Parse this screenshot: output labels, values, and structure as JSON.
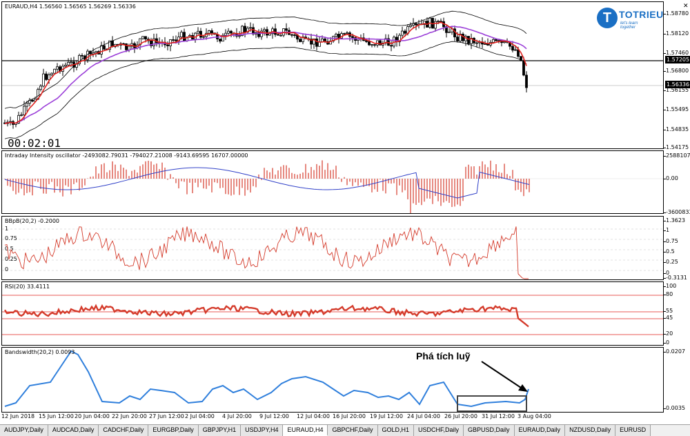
{
  "main_chart": {
    "label": "EURAUD,H4  1.56560 1.56565 1.56269 1.56336",
    "timer": "00:02:01",
    "ticks": [
      "1.58780",
      "1.58120",
      "1.57460",
      "1.56800",
      "1.56155",
      "1.55495",
      "1.54835",
      "1.54175"
    ],
    "price_line_tag": "1.57205",
    "current_price_tag": "1.56336"
  },
  "logo": {
    "brand": "TOTRIEU",
    "slogan": "let's learn together",
    "letter": "T"
  },
  "intraday": {
    "label": "Intraday Intensity oscillator -2493082.79031 -794027.21008 -9143.69595 16707.00000",
    "ticks": [
      "2588107.8",
      "0.00",
      "-3600833"
    ]
  },
  "bbpb": {
    "label": "BBpB(20,2) -0.2000",
    "ticks": [
      "1.3623",
      "1",
      "0.75",
      "0.5",
      "0.25",
      "0",
      "-0.3131"
    ],
    "left_ticks": [
      "1",
      "0.75",
      "0.5",
      "0.25",
      "0"
    ]
  },
  "rsi": {
    "label": "RSI(20) 33.4111",
    "ticks": [
      "100",
      "80",
      "55",
      "45",
      "20",
      "0"
    ],
    "levels": [
      80,
      55,
      45,
      20
    ]
  },
  "bandwidth": {
    "label": "Bandswidth(20,2) 0.0093",
    "ticks": [
      "0.0207",
      "0.0035"
    ],
    "annotation": "Phá tích luỹ"
  },
  "time_axis": [
    "12 Jun 2018",
    "15 Jun 12:00",
    "20 Jun 04:00",
    "22 Jun 20:00",
    "27 Jun 12:00",
    "2 Jul 04:00",
    "4 Jul 20:00",
    "9 Jul 12:00",
    "12 Jul 04:00",
    "16 Jul 20:00",
    "19 Jul 12:00",
    "24 Jul 04:00",
    "26 Jul 20:00",
    "31 Jul 12:00",
    "3 Aug 04:00"
  ],
  "tabs": [
    "AUDJPY,Daily",
    "AUDCAD,Daily",
    "CADCHF,Daily",
    "EURGBP,Daily",
    "GBPJPY,H1",
    "USDJPY,H4",
    "EURAUD,H4",
    "GBPCHF,Daily",
    "GOLD,H1",
    "USDCHF,Daily",
    "GBPUSD,Daily",
    "EURAUD,Daily",
    "NZDUSD,Daily",
    "EURUSD"
  ],
  "active_tab": 6,
  "colors": {
    "ma_fast": "#e0201c",
    "ma_slow": "#9b3fd8",
    "bands": "#000000",
    "osc_bars": "#d43a2a",
    "osc_line": "#3040c8",
    "bw_line": "#2f7fdc",
    "brand": "#1a6fc4"
  }
}
